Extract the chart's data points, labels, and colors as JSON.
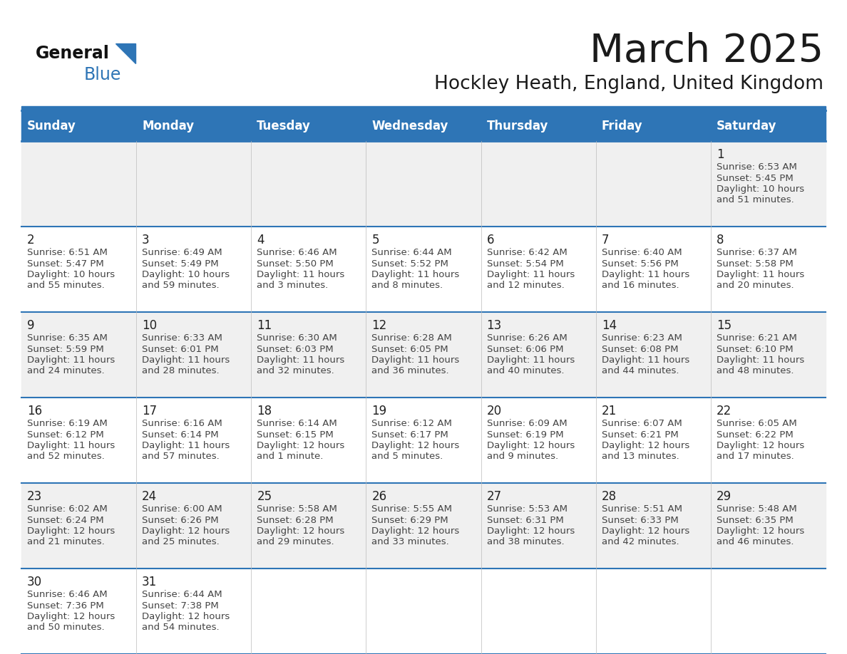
{
  "title": "March 2025",
  "subtitle": "Hockley Heath, England, United Kingdom",
  "days_of_week": [
    "Sunday",
    "Monday",
    "Tuesday",
    "Wednesday",
    "Thursday",
    "Friday",
    "Saturday"
  ],
  "header_bg": "#2E75B6",
  "header_text": "#FFFFFF",
  "alt_row_bg": "#F0F0F0",
  "normal_row_bg": "#FFFFFF",
  "day_num_color": "#222222",
  "info_text_color": "#444444",
  "border_color": "#2E75B6",
  "title_color": "#1a1a1a",
  "subtitle_color": "#1a1a1a",
  "calendar_data": [
    [
      null,
      null,
      null,
      null,
      null,
      null,
      {
        "day": 1,
        "sunrise": "6:53 AM",
        "sunset": "5:45 PM",
        "daylight_l1": "10 hours",
        "daylight_l2": "and 51 minutes."
      }
    ],
    [
      {
        "day": 2,
        "sunrise": "6:51 AM",
        "sunset": "5:47 PM",
        "daylight_l1": "10 hours",
        "daylight_l2": "and 55 minutes."
      },
      {
        "day": 3,
        "sunrise": "6:49 AM",
        "sunset": "5:49 PM",
        "daylight_l1": "10 hours",
        "daylight_l2": "and 59 minutes."
      },
      {
        "day": 4,
        "sunrise": "6:46 AM",
        "sunset": "5:50 PM",
        "daylight_l1": "11 hours",
        "daylight_l2": "and 3 minutes."
      },
      {
        "day": 5,
        "sunrise": "6:44 AM",
        "sunset": "5:52 PM",
        "daylight_l1": "11 hours",
        "daylight_l2": "and 8 minutes."
      },
      {
        "day": 6,
        "sunrise": "6:42 AM",
        "sunset": "5:54 PM",
        "daylight_l1": "11 hours",
        "daylight_l2": "and 12 minutes."
      },
      {
        "day": 7,
        "sunrise": "6:40 AM",
        "sunset": "5:56 PM",
        "daylight_l1": "11 hours",
        "daylight_l2": "and 16 minutes."
      },
      {
        "day": 8,
        "sunrise": "6:37 AM",
        "sunset": "5:58 PM",
        "daylight_l1": "11 hours",
        "daylight_l2": "and 20 minutes."
      }
    ],
    [
      {
        "day": 9,
        "sunrise": "6:35 AM",
        "sunset": "5:59 PM",
        "daylight_l1": "11 hours",
        "daylight_l2": "and 24 minutes."
      },
      {
        "day": 10,
        "sunrise": "6:33 AM",
        "sunset": "6:01 PM",
        "daylight_l1": "11 hours",
        "daylight_l2": "and 28 minutes."
      },
      {
        "day": 11,
        "sunrise": "6:30 AM",
        "sunset": "6:03 PM",
        "daylight_l1": "11 hours",
        "daylight_l2": "and 32 minutes."
      },
      {
        "day": 12,
        "sunrise": "6:28 AM",
        "sunset": "6:05 PM",
        "daylight_l1": "11 hours",
        "daylight_l2": "and 36 minutes."
      },
      {
        "day": 13,
        "sunrise": "6:26 AM",
        "sunset": "6:06 PM",
        "daylight_l1": "11 hours",
        "daylight_l2": "and 40 minutes."
      },
      {
        "day": 14,
        "sunrise": "6:23 AM",
        "sunset": "6:08 PM",
        "daylight_l1": "11 hours",
        "daylight_l2": "and 44 minutes."
      },
      {
        "day": 15,
        "sunrise": "6:21 AM",
        "sunset": "6:10 PM",
        "daylight_l1": "11 hours",
        "daylight_l2": "and 48 minutes."
      }
    ],
    [
      {
        "day": 16,
        "sunrise": "6:19 AM",
        "sunset": "6:12 PM",
        "daylight_l1": "11 hours",
        "daylight_l2": "and 52 minutes."
      },
      {
        "day": 17,
        "sunrise": "6:16 AM",
        "sunset": "6:14 PM",
        "daylight_l1": "11 hours",
        "daylight_l2": "and 57 minutes."
      },
      {
        "day": 18,
        "sunrise": "6:14 AM",
        "sunset": "6:15 PM",
        "daylight_l1": "12 hours",
        "daylight_l2": "and 1 minute."
      },
      {
        "day": 19,
        "sunrise": "6:12 AM",
        "sunset": "6:17 PM",
        "daylight_l1": "12 hours",
        "daylight_l2": "and 5 minutes."
      },
      {
        "day": 20,
        "sunrise": "6:09 AM",
        "sunset": "6:19 PM",
        "daylight_l1": "12 hours",
        "daylight_l2": "and 9 minutes."
      },
      {
        "day": 21,
        "sunrise": "6:07 AM",
        "sunset": "6:21 PM",
        "daylight_l1": "12 hours",
        "daylight_l2": "and 13 minutes."
      },
      {
        "day": 22,
        "sunrise": "6:05 AM",
        "sunset": "6:22 PM",
        "daylight_l1": "12 hours",
        "daylight_l2": "and 17 minutes."
      }
    ],
    [
      {
        "day": 23,
        "sunrise": "6:02 AM",
        "sunset": "6:24 PM",
        "daylight_l1": "12 hours",
        "daylight_l2": "and 21 minutes."
      },
      {
        "day": 24,
        "sunrise": "6:00 AM",
        "sunset": "6:26 PM",
        "daylight_l1": "12 hours",
        "daylight_l2": "and 25 minutes."
      },
      {
        "day": 25,
        "sunrise": "5:58 AM",
        "sunset": "6:28 PM",
        "daylight_l1": "12 hours",
        "daylight_l2": "and 29 minutes."
      },
      {
        "day": 26,
        "sunrise": "5:55 AM",
        "sunset": "6:29 PM",
        "daylight_l1": "12 hours",
        "daylight_l2": "and 33 minutes."
      },
      {
        "day": 27,
        "sunrise": "5:53 AM",
        "sunset": "6:31 PM",
        "daylight_l1": "12 hours",
        "daylight_l2": "and 38 minutes."
      },
      {
        "day": 28,
        "sunrise": "5:51 AM",
        "sunset": "6:33 PM",
        "daylight_l1": "12 hours",
        "daylight_l2": "and 42 minutes."
      },
      {
        "day": 29,
        "sunrise": "5:48 AM",
        "sunset": "6:35 PM",
        "daylight_l1": "12 hours",
        "daylight_l2": "and 46 minutes."
      }
    ],
    [
      {
        "day": 30,
        "sunrise": "6:46 AM",
        "sunset": "7:36 PM",
        "daylight_l1": "12 hours",
        "daylight_l2": "and 50 minutes."
      },
      {
        "day": 31,
        "sunrise": "6:44 AM",
        "sunset": "7:38 PM",
        "daylight_l1": "12 hours",
        "daylight_l2": "and 54 minutes."
      },
      null,
      null,
      null,
      null,
      null
    ]
  ]
}
